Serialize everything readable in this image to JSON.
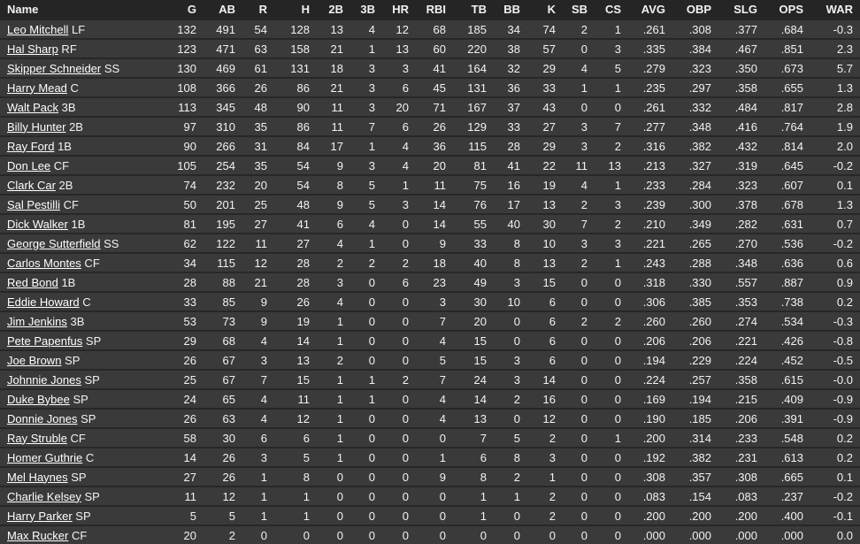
{
  "colors": {
    "header_bg": "#252525",
    "row_bg": "#3a3a3a",
    "divider": "#272727",
    "text": "#f2f2f2",
    "link": "#ffffff"
  },
  "table": {
    "columns": [
      "Name",
      "G",
      "AB",
      "R",
      "H",
      "2B",
      "3B",
      "HR",
      "RBI",
      "TB",
      "BB",
      "K",
      "SB",
      "CS",
      "AVG",
      "OBP",
      "SLG",
      "OPS",
      "WAR"
    ],
    "rows": [
      {
        "name": "Leo Mitchell",
        "pos": "LF",
        "stats": [
          132,
          491,
          54,
          128,
          13,
          4,
          12,
          68,
          185,
          34,
          74,
          2,
          1,
          ".261",
          ".308",
          ".377",
          ".684",
          "-0.3"
        ]
      },
      {
        "name": "Hal Sharp",
        "pos": "RF",
        "stats": [
          123,
          471,
          63,
          158,
          21,
          1,
          13,
          60,
          220,
          38,
          57,
          0,
          3,
          ".335",
          ".384",
          ".467",
          ".851",
          "2.3"
        ]
      },
      {
        "name": "Skipper Schneider",
        "pos": "SS",
        "stats": [
          130,
          469,
          61,
          131,
          18,
          3,
          3,
          41,
          164,
          32,
          29,
          4,
          5,
          ".279",
          ".323",
          ".350",
          ".673",
          "5.7"
        ]
      },
      {
        "name": "Harry Mead",
        "pos": "C",
        "stats": [
          108,
          366,
          26,
          86,
          21,
          3,
          6,
          45,
          131,
          36,
          33,
          1,
          1,
          ".235",
          ".297",
          ".358",
          ".655",
          "1.3"
        ]
      },
      {
        "name": "Walt Pack",
        "pos": "3B",
        "stats": [
          113,
          345,
          48,
          90,
          11,
          3,
          20,
          71,
          167,
          37,
          43,
          0,
          0,
          ".261",
          ".332",
          ".484",
          ".817",
          "2.8"
        ]
      },
      {
        "name": "Billy Hunter",
        "pos": "2B",
        "stats": [
          97,
          310,
          35,
          86,
          11,
          7,
          6,
          26,
          129,
          33,
          27,
          3,
          7,
          ".277",
          ".348",
          ".416",
          ".764",
          "1.9"
        ]
      },
      {
        "name": "Ray Ford",
        "pos": "1B",
        "stats": [
          90,
          266,
          31,
          84,
          17,
          1,
          4,
          36,
          115,
          28,
          29,
          3,
          2,
          ".316",
          ".382",
          ".432",
          ".814",
          "2.0"
        ]
      },
      {
        "name": "Don Lee",
        "pos": "CF",
        "stats": [
          105,
          254,
          35,
          54,
          9,
          3,
          4,
          20,
          81,
          41,
          22,
          11,
          13,
          ".213",
          ".327",
          ".319",
          ".645",
          "-0.2"
        ]
      },
      {
        "name": "Clark Car",
        "pos": "2B",
        "stats": [
          74,
          232,
          20,
          54,
          8,
          5,
          1,
          11,
          75,
          16,
          19,
          4,
          1,
          ".233",
          ".284",
          ".323",
          ".607",
          "0.1"
        ]
      },
      {
        "name": "Sal Pestilli",
        "pos": "CF",
        "stats": [
          50,
          201,
          25,
          48,
          9,
          5,
          3,
          14,
          76,
          17,
          13,
          2,
          3,
          ".239",
          ".300",
          ".378",
          ".678",
          "1.3"
        ]
      },
      {
        "name": "Dick Walker",
        "pos": "1B",
        "stats": [
          81,
          195,
          27,
          41,
          6,
          4,
          0,
          14,
          55,
          40,
          30,
          7,
          2,
          ".210",
          ".349",
          ".282",
          ".631",
          "0.7"
        ]
      },
      {
        "name": "George Sutterfield",
        "pos": "SS",
        "stats": [
          62,
          122,
          11,
          27,
          4,
          1,
          0,
          9,
          33,
          8,
          10,
          3,
          3,
          ".221",
          ".265",
          ".270",
          ".536",
          "-0.2"
        ]
      },
      {
        "name": "Carlos Montes",
        "pos": "CF",
        "stats": [
          34,
          115,
          12,
          28,
          2,
          2,
          2,
          18,
          40,
          8,
          13,
          2,
          1,
          ".243",
          ".288",
          ".348",
          ".636",
          "0.6"
        ]
      },
      {
        "name": "Red Bond",
        "pos": "1B",
        "stats": [
          28,
          88,
          21,
          28,
          3,
          0,
          6,
          23,
          49,
          3,
          15,
          0,
          0,
          ".318",
          ".330",
          ".557",
          ".887",
          "0.9"
        ]
      },
      {
        "name": "Eddie Howard",
        "pos": "C",
        "stats": [
          33,
          85,
          9,
          26,
          4,
          0,
          0,
          3,
          30,
          10,
          6,
          0,
          0,
          ".306",
          ".385",
          ".353",
          ".738",
          "0.2"
        ]
      },
      {
        "name": "Jim Jenkins",
        "pos": "3B",
        "stats": [
          53,
          73,
          9,
          19,
          1,
          0,
          0,
          7,
          20,
          0,
          6,
          2,
          2,
          ".260",
          ".260",
          ".274",
          ".534",
          "-0.3"
        ]
      },
      {
        "name": "Pete Papenfus",
        "pos": "SP",
        "stats": [
          29,
          68,
          4,
          14,
          1,
          0,
          0,
          4,
          15,
          0,
          6,
          0,
          0,
          ".206",
          ".206",
          ".221",
          ".426",
          "-0.8"
        ]
      },
      {
        "name": "Joe Brown",
        "pos": "SP",
        "stats": [
          26,
          67,
          3,
          13,
          2,
          0,
          0,
          5,
          15,
          3,
          6,
          0,
          0,
          ".194",
          ".229",
          ".224",
          ".452",
          "-0.5"
        ]
      },
      {
        "name": "Johnnie Jones",
        "pos": "SP",
        "stats": [
          25,
          67,
          7,
          15,
          1,
          1,
          2,
          7,
          24,
          3,
          14,
          0,
          0,
          ".224",
          ".257",
          ".358",
          ".615",
          "-0.0"
        ]
      },
      {
        "name": "Duke Bybee",
        "pos": "SP",
        "stats": [
          24,
          65,
          4,
          11,
          1,
          1,
          0,
          4,
          14,
          2,
          16,
          0,
          0,
          ".169",
          ".194",
          ".215",
          ".409",
          "-0.9"
        ]
      },
      {
        "name": "Donnie Jones",
        "pos": "SP",
        "stats": [
          26,
          63,
          4,
          12,
          1,
          0,
          0,
          4,
          13,
          0,
          12,
          0,
          0,
          ".190",
          ".185",
          ".206",
          ".391",
          "-0.9"
        ]
      },
      {
        "name": "Ray Struble",
        "pos": "CF",
        "stats": [
          58,
          30,
          6,
          6,
          1,
          0,
          0,
          0,
          7,
          5,
          2,
          0,
          1,
          ".200",
          ".314",
          ".233",
          ".548",
          "0.2"
        ]
      },
      {
        "name": "Homer Guthrie",
        "pos": "C",
        "stats": [
          14,
          26,
          3,
          5,
          1,
          0,
          0,
          1,
          6,
          8,
          3,
          0,
          0,
          ".192",
          ".382",
          ".231",
          ".613",
          "0.2"
        ]
      },
      {
        "name": "Mel Haynes",
        "pos": "SP",
        "stats": [
          27,
          26,
          1,
          8,
          0,
          0,
          0,
          9,
          8,
          2,
          1,
          0,
          0,
          ".308",
          ".357",
          ".308",
          ".665",
          "0.1"
        ]
      },
      {
        "name": "Charlie Kelsey",
        "pos": "SP",
        "stats": [
          11,
          12,
          1,
          1,
          0,
          0,
          0,
          0,
          1,
          1,
          2,
          0,
          0,
          ".083",
          ".154",
          ".083",
          ".237",
          "-0.2"
        ]
      },
      {
        "name": "Harry Parker",
        "pos": "SP",
        "stats": [
          5,
          5,
          1,
          1,
          0,
          0,
          0,
          0,
          1,
          0,
          2,
          0,
          0,
          ".200",
          ".200",
          ".200",
          ".400",
          "-0.1"
        ]
      },
      {
        "name": "Max Rucker",
        "pos": "CF",
        "stats": [
          20,
          2,
          0,
          0,
          0,
          0,
          0,
          0,
          0,
          0,
          0,
          0,
          0,
          ".000",
          ".000",
          ".000",
          ".000",
          "0.0"
        ]
      }
    ]
  }
}
